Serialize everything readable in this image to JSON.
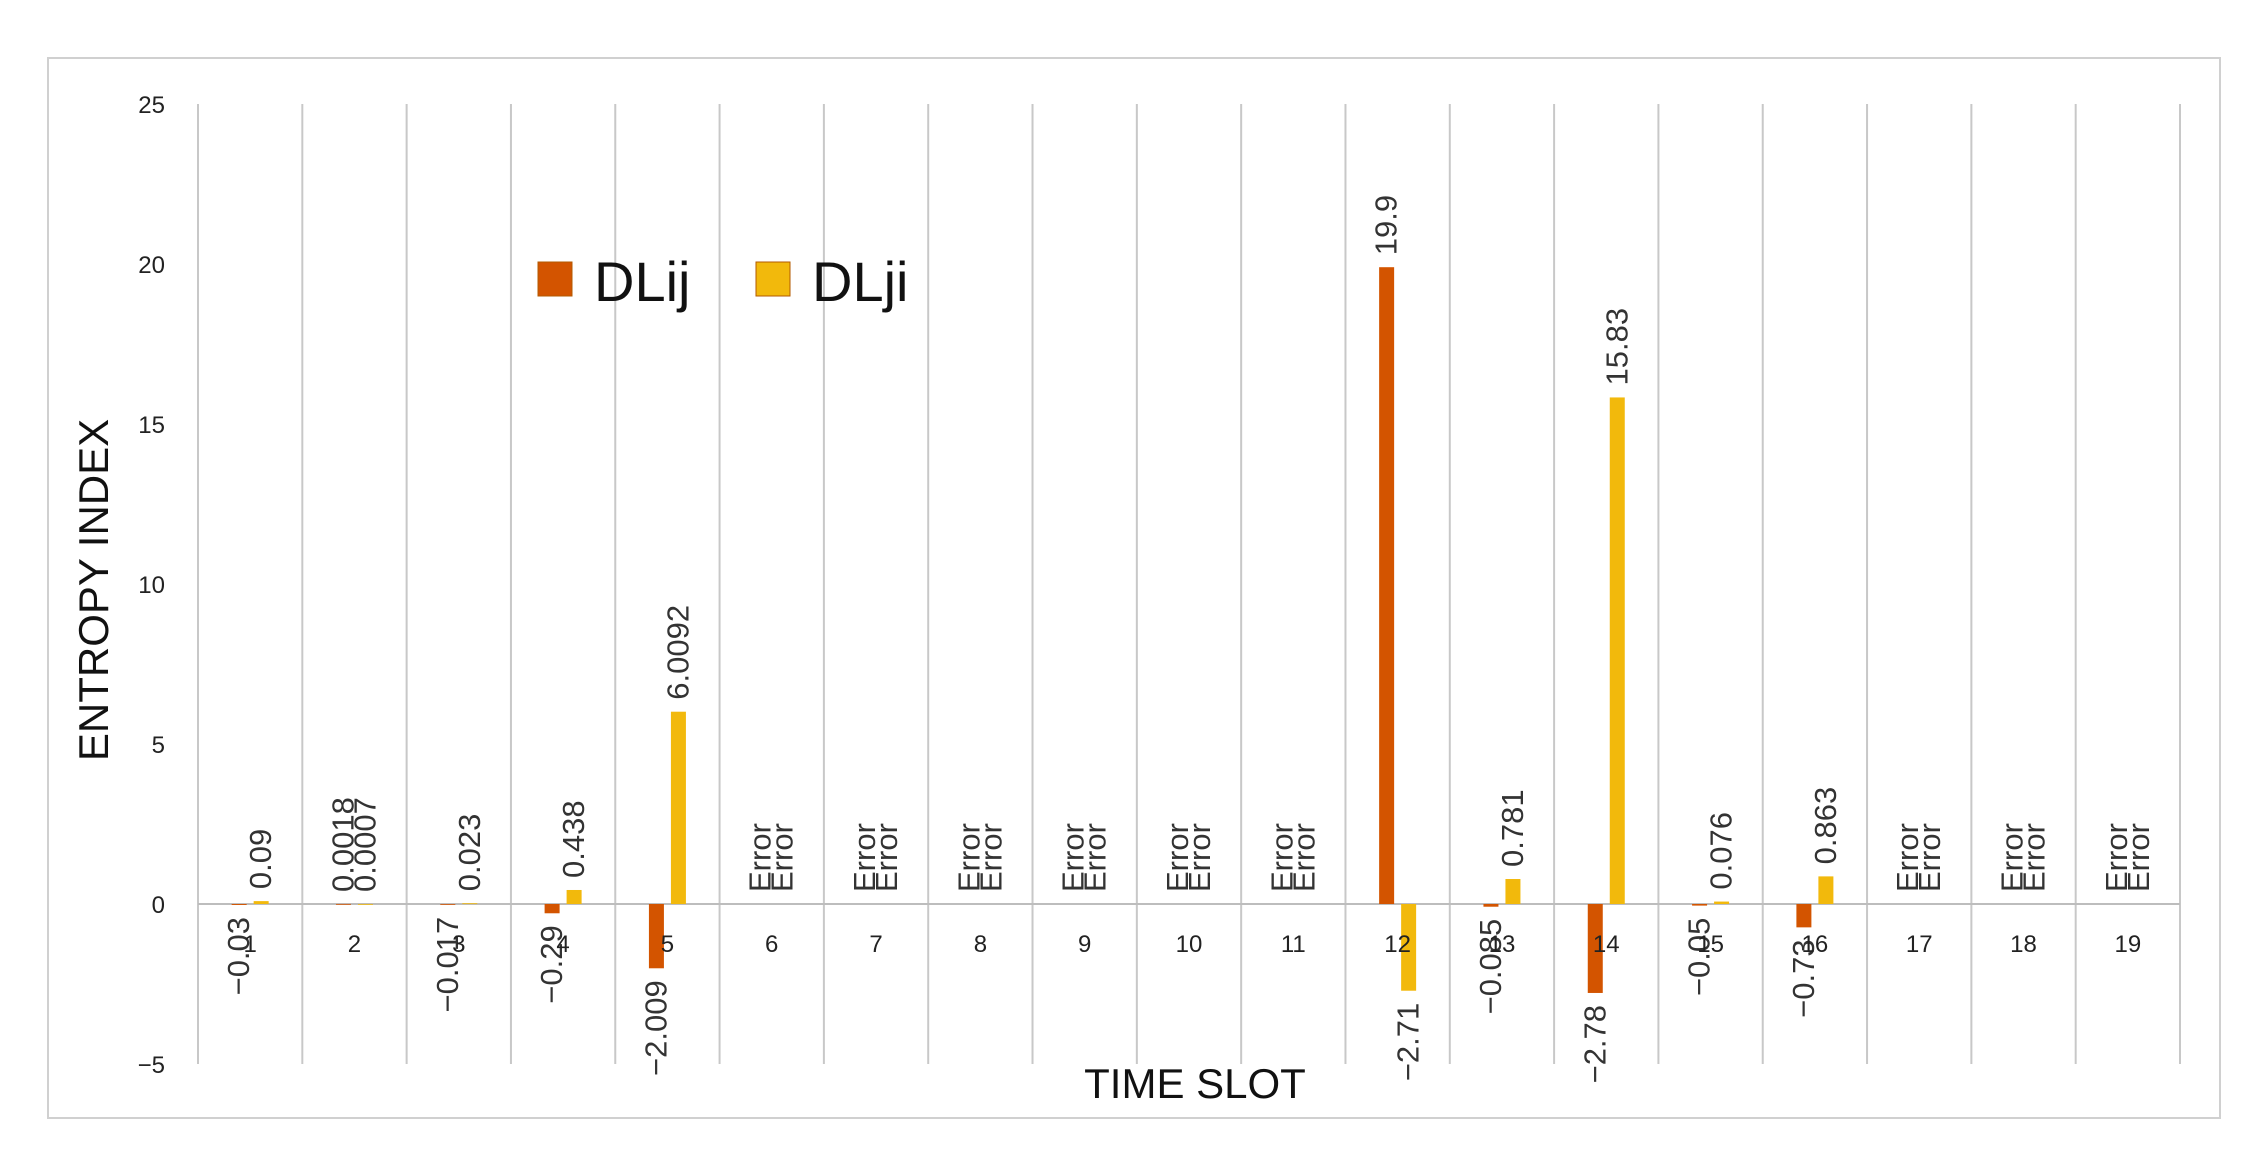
{
  "chart_data": {
    "type": "bar",
    "xlabel": "TIME SLOT",
    "ylabel": "ENTROPY INDEX",
    "ylim": [
      -5,
      25
    ],
    "yticks": [
      -5,
      0,
      5,
      10,
      15,
      20,
      25
    ],
    "grid": "vertical category separators",
    "legend": "upper-left inside plot",
    "categories": [
      "1",
      "2",
      "3",
      "4",
      "5",
      "6",
      "7",
      "8",
      "9",
      "10",
      "11",
      "12",
      "13",
      "14",
      "15",
      "16",
      "17",
      "18",
      "19"
    ],
    "series": [
      {
        "name": "DLij",
        "color": "#d35400",
        "values": [
          -0.03,
          0.0018,
          -0.017,
          -0.29,
          -2.009,
          null,
          null,
          null,
          null,
          null,
          null,
          19.9,
          -0.085,
          -2.78,
          -0.05,
          -0.73,
          null,
          null,
          null
        ],
        "labels": [
          "−0.03",
          "0.0018",
          "−0.017",
          "−0.29",
          "−2.009",
          "Error",
          "Error",
          "Error",
          "Error",
          "Error",
          "Error",
          "19.9",
          "−0.085",
          "−2.78",
          "−0.05",
          "−0.73",
          "Error",
          "Error",
          "Error"
        ]
      },
      {
        "name": "DLji",
        "color": "#f2b90c",
        "values": [
          0.09,
          0.0007,
          0.023,
          0.438,
          6.0092,
          null,
          null,
          null,
          null,
          null,
          null,
          -2.71,
          0.781,
          15.83,
          0.076,
          0.863,
          null,
          null,
          null
        ],
        "labels": [
          "0.09",
          "0.0007",
          "0.023",
          "0.438",
          "6.0092",
          "Error",
          "Error",
          "Error",
          "Error",
          "Error",
          "Error",
          "−2.71",
          "0.781",
          "15.83",
          "0.076",
          "0.863",
          "Error",
          "Error",
          "Error"
        ]
      }
    ]
  }
}
